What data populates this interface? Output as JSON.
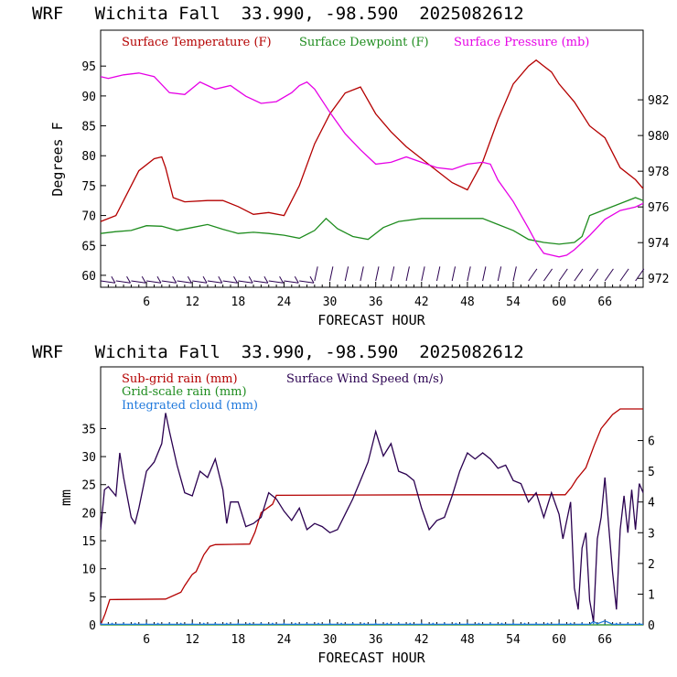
{
  "chart_data": [
    {
      "type": "line",
      "title": "WRF   Wichita Fall  33.990, -98.590  2025082612",
      "xlabel": "FORECAST HOUR",
      "ylabel": "Degrees F",
      "xlim": [
        0,
        71
      ],
      "ylim": [
        58,
        101
      ],
      "y2lim": [
        971.5,
        985.9
      ],
      "xticks": [
        6,
        12,
        18,
        24,
        30,
        36,
        42,
        48,
        54,
        60,
        66
      ],
      "yticks": [
        60,
        65,
        70,
        75,
        80,
        85,
        90,
        95
      ],
      "y2ticks": [
        972,
        974,
        976,
        978,
        980,
        982
      ],
      "colors": {
        "temperature": "#b40000",
        "dewpoint": "#1e8c1e",
        "pressure": "#e600e6",
        "barbs": "#2a0050"
      },
      "series": [
        {
          "name": "Surface Temperature (F)",
          "axis": "left",
          "x": [
            0,
            2,
            4,
            5,
            7,
            8,
            8.5,
            9.5,
            11,
            14,
            16,
            18,
            20,
            22,
            24,
            26,
            28,
            30,
            32,
            34,
            36,
            38,
            40,
            42,
            44,
            46,
            48,
            50,
            52,
            54,
            56,
            57,
            58,
            59,
            60,
            62,
            64,
            66,
            68,
            70,
            71
          ],
          "values": [
            69,
            70,
            75,
            77.5,
            79.5,
            79.8,
            78,
            73,
            72.3,
            72.5,
            72.5,
            71.5,
            70.2,
            70.5,
            70,
            75,
            82,
            87,
            90.5,
            91.5,
            87,
            84,
            81.5,
            79.5,
            77.5,
            75.5,
            74.3,
            79,
            86,
            92,
            95,
            96,
            95,
            94,
            92,
            89,
            85,
            83,
            78,
            76,
            74.5
          ]
        },
        {
          "name": "Surface Dewpoint (F)",
          "axis": "left",
          "x": [
            0,
            2,
            4,
            6,
            8,
            10,
            12,
            14,
            16,
            18,
            20,
            22,
            24,
            26,
            28,
            29.5,
            31,
            33,
            35,
            37,
            39,
            42,
            45,
            48,
            50,
            52,
            54,
            56,
            58,
            60,
            62,
            63,
            64,
            66,
            68,
            70,
            71
          ],
          "values": [
            67,
            67.3,
            67.5,
            68.3,
            68.2,
            67.5,
            68,
            68.5,
            67.7,
            67,
            67.2,
            67,
            66.7,
            66.2,
            67.5,
            69.5,
            67.8,
            66.5,
            66,
            68,
            69,
            69.5,
            69.5,
            69.5,
            69.5,
            68.5,
            67.5,
            66,
            65.5,
            65.2,
            65.5,
            66.5,
            70,
            71,
            72,
            73,
            72.5
          ]
        },
        {
          "name": "Surface Pressure (mb)",
          "axis": "right",
          "x": [
            0,
            1,
            3,
            5,
            7,
            9,
            11,
            13,
            15,
            17,
            19,
            21,
            23,
            25,
            26,
            27,
            28,
            30,
            32,
            34,
            36,
            38,
            40,
            42,
            44,
            46,
            48,
            50,
            51,
            52,
            54,
            56,
            57,
            58,
            59,
            60,
            61,
            62,
            64,
            66,
            68,
            70,
            71
          ],
          "values": [
            983.3,
            983.2,
            983.4,
            983.5,
            983.3,
            982.4,
            982.3,
            983,
            982.6,
            982.8,
            982.2,
            981.8,
            981.9,
            982.4,
            982.8,
            983,
            982.6,
            981.3,
            980.1,
            979.2,
            978.4,
            978.5,
            978.8,
            978.5,
            978.2,
            978.1,
            978.4,
            978.5,
            978.4,
            977.5,
            976.3,
            974.8,
            974,
            973.4,
            973.3,
            973.2,
            973.3,
            973.6,
            974.4,
            975.3,
            975.8,
            976,
            976.2
          ]
        }
      ],
      "wind_barbs_x": [
        0,
        2,
        4,
        6,
        8,
        10,
        12,
        14,
        16,
        18,
        20,
        22,
        24,
        26,
        28,
        30,
        32,
        34,
        36,
        38,
        40,
        42,
        44,
        46,
        48,
        50,
        52,
        54,
        56,
        58,
        60,
        62,
        64,
        66,
        68,
        70
      ]
    },
    {
      "type": "line",
      "title": "WRF   Wichita Fall  33.990, -98.590  2025082612",
      "xlabel": "FORECAST HOUR",
      "ylabel": "mm",
      "xlim": [
        0,
        71
      ],
      "ylim": [
        0,
        46
      ],
      "y2lim": [
        0,
        8.4
      ],
      "xticks": [
        6,
        12,
        18,
        24,
        30,
        36,
        42,
        48,
        54,
        60,
        66
      ],
      "yticks": [
        0,
        5,
        10,
        15,
        20,
        25,
        30,
        35
      ],
      "y2ticks": [
        0,
        1,
        2,
        3,
        4,
        5,
        6
      ],
      "colors": {
        "subgrid": "#b40000",
        "gridscale": "#1e8c1e",
        "cloud": "#1e78dc",
        "wind": "#2a0050"
      },
      "series": [
        {
          "name": "Sub-grid rain (mm)",
          "axis": "left",
          "x": [
            0,
            0.6,
            1.2,
            8.5,
            10.5,
            11,
            12,
            12.5,
            13.5,
            14.3,
            15,
            19.5,
            20.2,
            21,
            22.5,
            23,
            44,
            60.8,
            61.6,
            62.3,
            63.5,
            64.6,
            65.5,
            66.4,
            67,
            68,
            71
          ],
          "values": [
            0,
            2,
            4.5,
            4.6,
            5.8,
            7,
            9,
            9.5,
            12.5,
            14,
            14.3,
            14.4,
            16.5,
            20,
            21.5,
            23.1,
            23.2,
            23.2,
            24.5,
            26,
            28,
            32,
            35,
            36.5,
            37.5,
            38.5,
            38.5
          ]
        },
        {
          "name": "Grid-scale rain (mm)",
          "axis": "left",
          "x": [
            0,
            71
          ],
          "values": [
            0,
            0
          ]
        },
        {
          "name": "Integrated cloud (mm)",
          "axis": "left",
          "x": [
            0,
            64,
            64.5,
            65,
            66,
            67,
            71
          ],
          "values": [
            0.1,
            0.1,
            0.6,
            0.2,
            0.7,
            0.1,
            0.1
          ]
        },
        {
          "name": "Surface Wind Speed (m/s)",
          "axis": "right",
          "x": [
            0,
            0.5,
            1,
            2,
            2.5,
            3,
            4,
            4.5,
            5,
            6,
            7,
            8,
            8.5,
            9,
            10,
            11,
            12,
            13,
            14,
            15,
            16,
            16.5,
            17,
            18,
            19,
            20,
            21,
            22,
            23,
            24,
            25,
            26,
            27,
            28,
            29,
            30,
            31,
            32,
            33,
            34,
            35,
            36,
            37,
            38,
            39,
            40,
            41,
            42,
            43,
            44,
            45,
            46,
            47,
            48,
            49,
            50,
            51,
            52,
            53,
            54,
            55,
            56,
            57,
            58,
            59,
            60,
            60.5,
            61,
            61.5,
            62,
            62.5,
            63,
            63.5,
            64,
            64.5,
            65,
            65.5,
            66,
            66.5,
            67,
            67.5,
            68,
            68.5,
            69,
            69.5,
            70,
            70.5,
            71
          ],
          "values": [
            3.1,
            4.4,
            4.5,
            4.2,
            5.6,
            4.8,
            3.5,
            3.3,
            3.8,
            5,
            5.3,
            5.9,
            6.9,
            6.3,
            5.2,
            4.3,
            4.2,
            5,
            4.8,
            5.4,
            4.4,
            3.3,
            4,
            4,
            3.2,
            3.3,
            3.5,
            4.3,
            4.1,
            3.7,
            3.4,
            3.8,
            3.1,
            3.3,
            3.2,
            3.0,
            3.1,
            3.6,
            4.1,
            4.7,
            5.3,
            6.3,
            5.5,
            5.9,
            5.0,
            4.9,
            4.7,
            3.8,
            3.1,
            3.4,
            3.5,
            4.2,
            5.0,
            5.6,
            5.4,
            5.6,
            5.4,
            5.1,
            5.2,
            4.7,
            4.6,
            4.0,
            4.3,
            3.5,
            4.3,
            3.6,
            2.8,
            3.4,
            4.0,
            1.2,
            0.5,
            2.5,
            3.0,
            0.8,
            0.1,
            2.8,
            3.5,
            4.8,
            3.2,
            1.7,
            0.5,
            3.1,
            4.2,
            3.0,
            4.4,
            3.1,
            4.6,
            4.3
          ]
        }
      ]
    }
  ]
}
